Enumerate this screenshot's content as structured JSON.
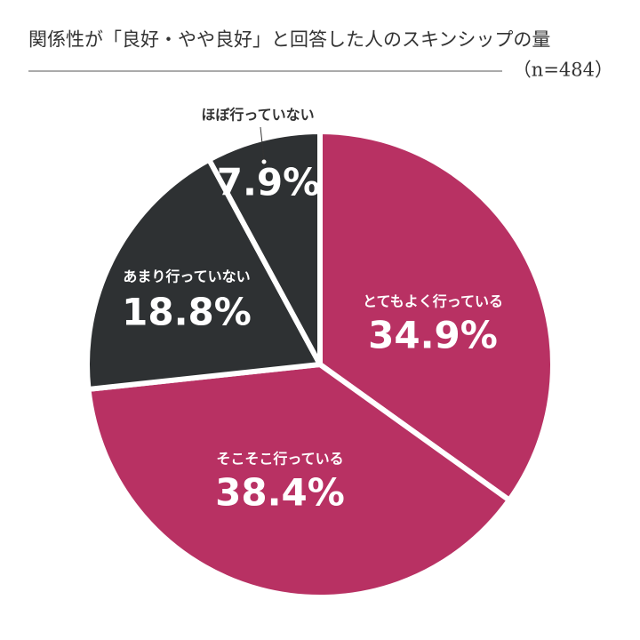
{
  "chart_data": {
    "type": "pie",
    "title": "関係性が「良好・やや良好」と回答した人のスキンシップの量",
    "subtitle": "（n=484）",
    "categories": [
      "とてもよく行っている",
      "そこそこ行っている",
      "あまり行っていない",
      "ほぼ行っていない"
    ],
    "values": [
      34.9,
      38.4,
      18.8,
      7.9
    ],
    "value_labels": [
      "34.9%",
      "38.4%",
      "18.8%",
      "7.9%"
    ],
    "colors": [
      "#b83163",
      "#b83163",
      "#2e3133",
      "#2e3133"
    ]
  }
}
